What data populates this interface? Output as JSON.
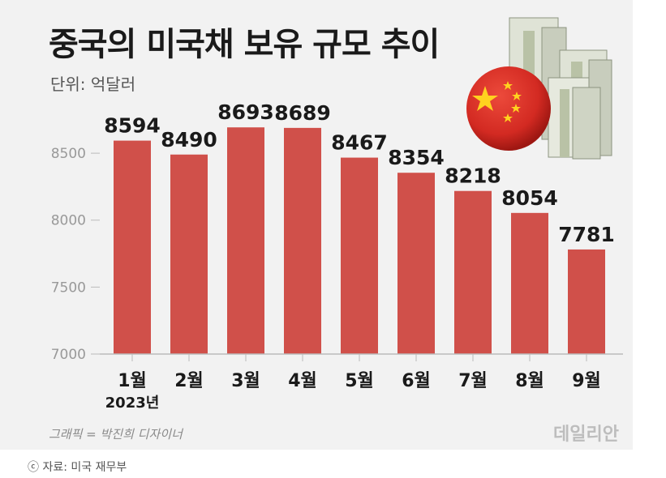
{
  "title": "중국의 미국채 보유 규모 추이",
  "unit": "단위: 억달러",
  "credit": "그래픽 = 박진희 디자이너",
  "brand": "데일리안",
  "source": "ⓒ 자료: 미국 재무부",
  "colors": {
    "bar": "#d0504a",
    "axis": "#bbbbbb",
    "card": "#f2f2f2"
  },
  "chart_data": {
    "type": "bar",
    "title": "중국의 미국채 보유 규모 추이",
    "ylabel": "단위: 억달러",
    "categories": [
      "1월",
      "2월",
      "3월",
      "4월",
      "5월",
      "6월",
      "7월",
      "8월",
      "9월"
    ],
    "category_sublabels": [
      "2023년",
      "",
      "",
      "",
      "",
      "",
      "",
      "",
      ""
    ],
    "values": [
      8594,
      8490,
      8693,
      8689,
      8467,
      8354,
      8218,
      8054,
      7781
    ],
    "value_labels": [
      "8594",
      "8490",
      "8693",
      "8689",
      "8467",
      "8354",
      "8218",
      "8054",
      "7781"
    ],
    "yticks": [
      7000,
      7500,
      8000,
      8500
    ],
    "ytick_labels": [
      "7000",
      "7500",
      "8000",
      "8500"
    ],
    "ylim": [
      7000,
      8900
    ],
    "grid": false,
    "legend": "none"
  }
}
